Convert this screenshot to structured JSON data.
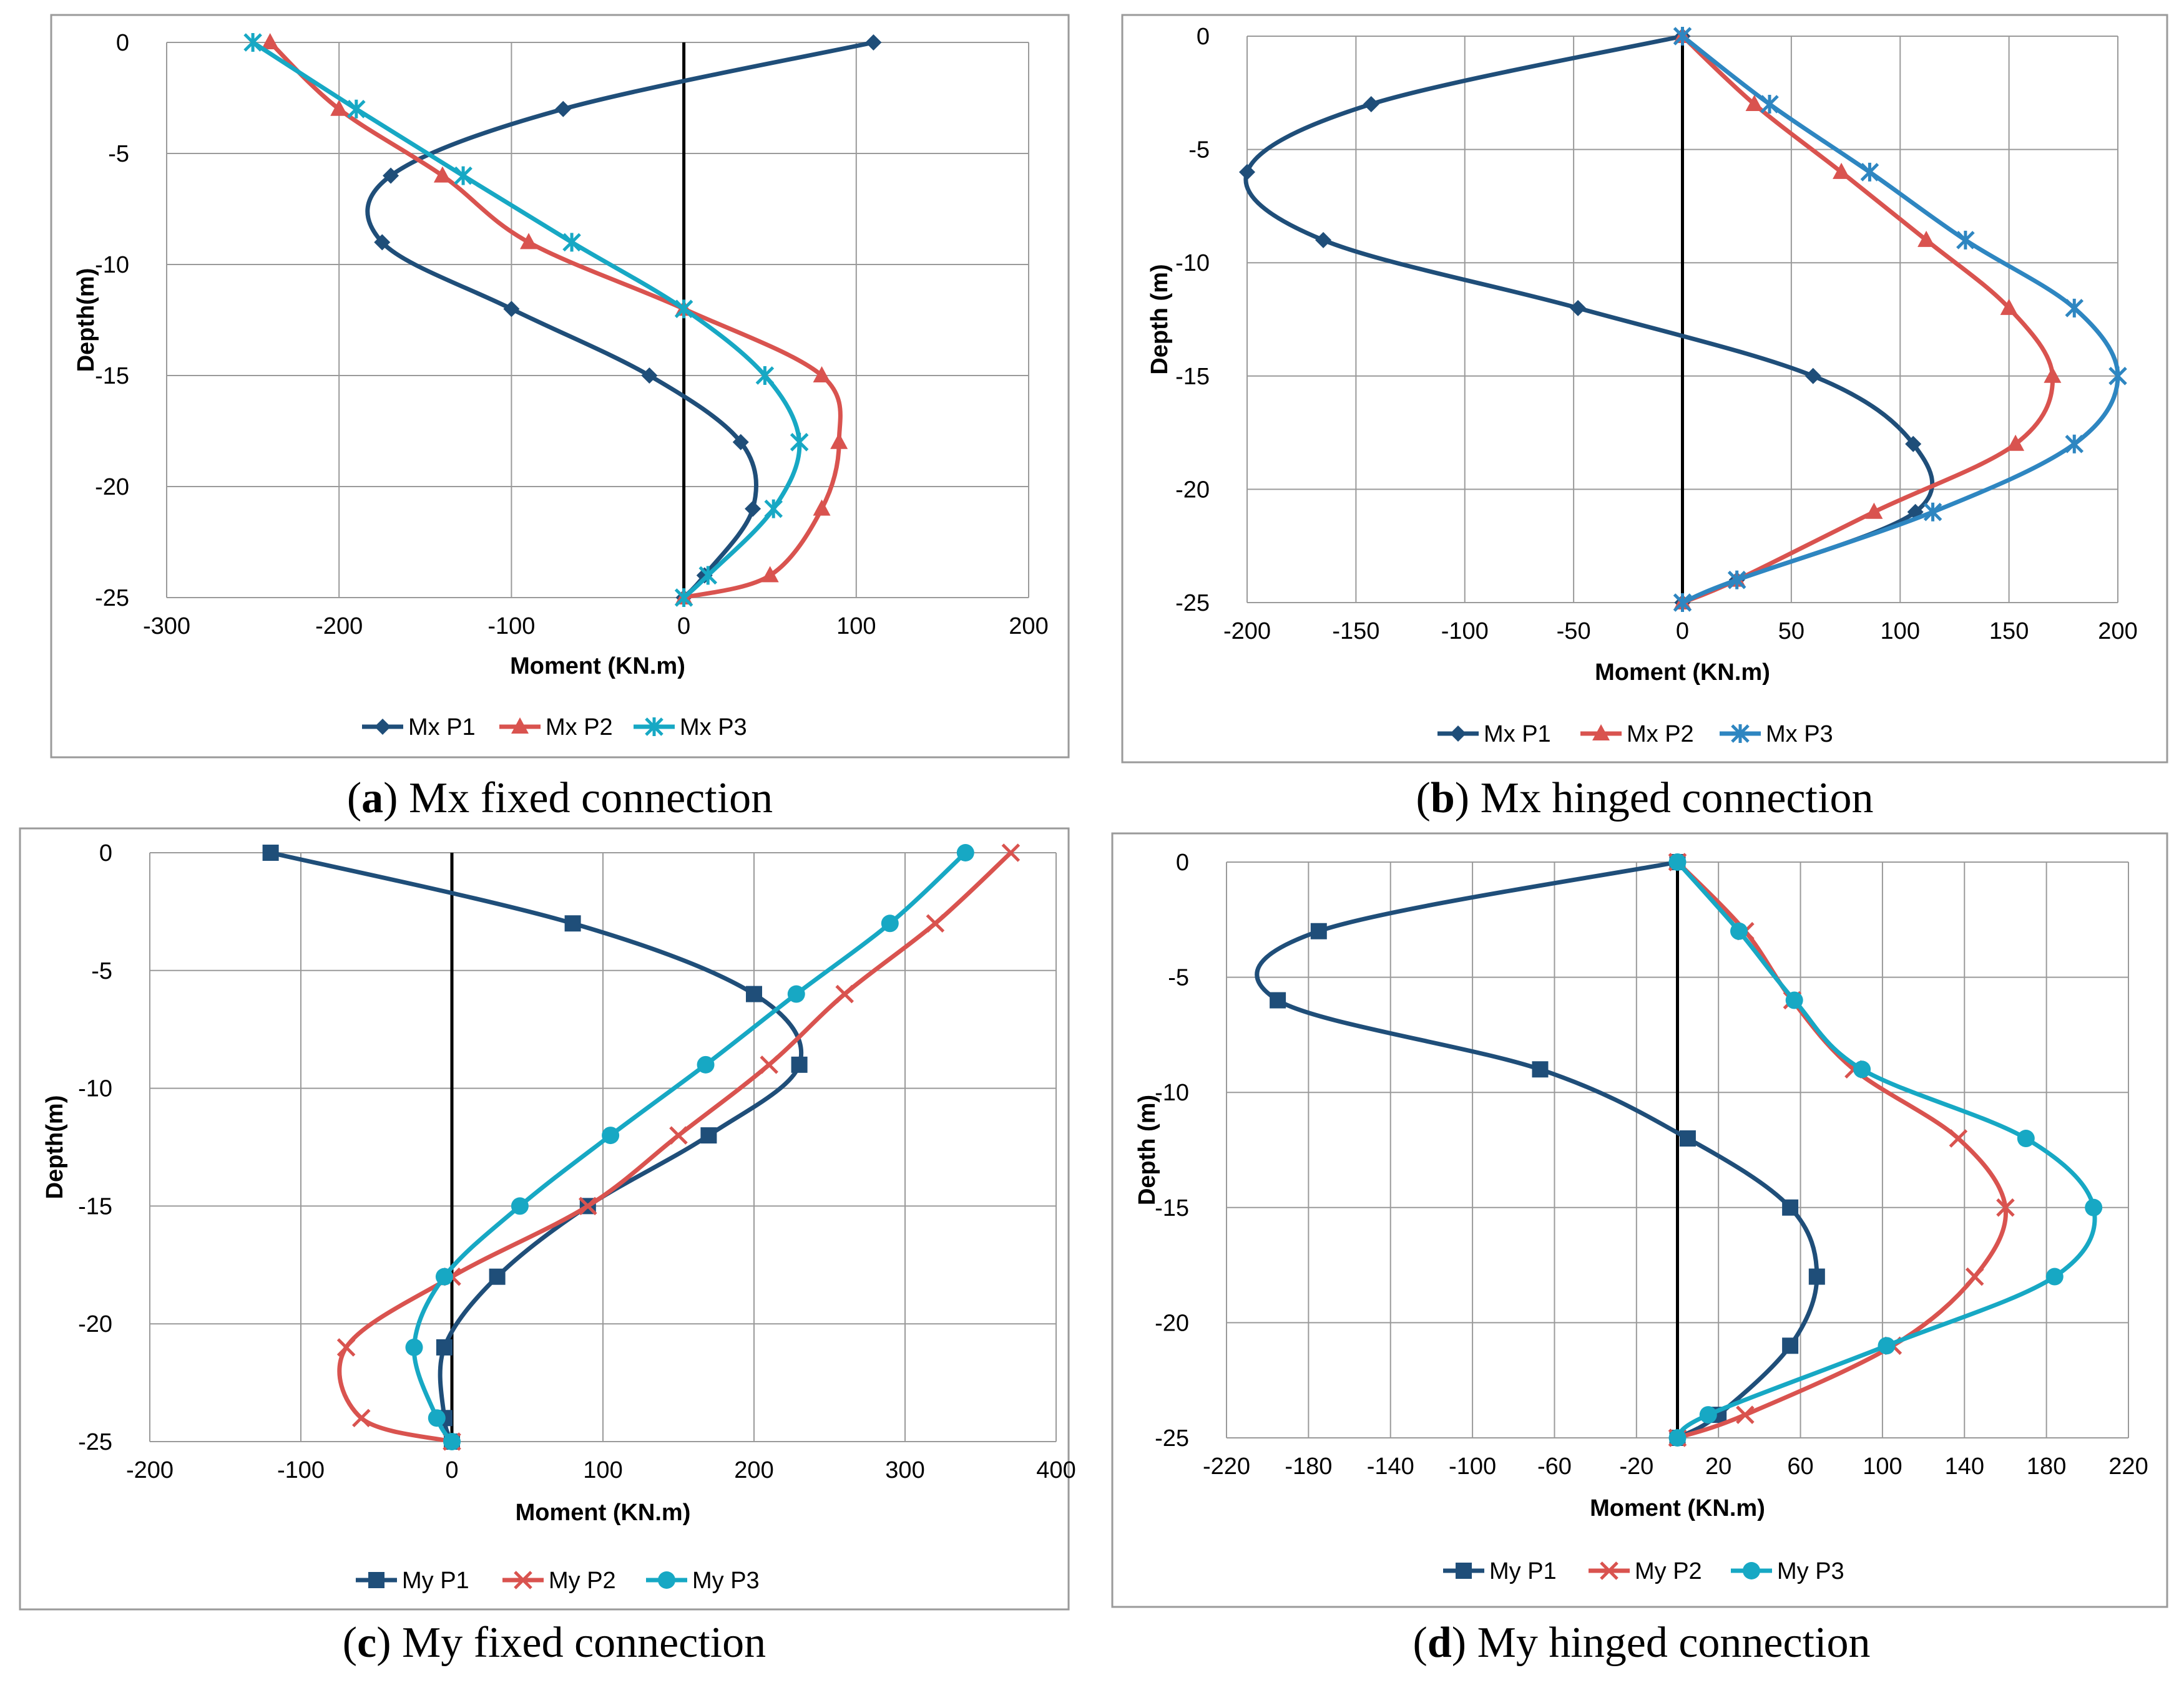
{
  "colors": {
    "P1": "#1f4e79",
    "P2": "#d9534f",
    "P3": "#17a8c4",
    "P3b": "#2e86c1",
    "grid": "#9a9a9a",
    "frame": "#9a9a9a"
  },
  "chart_data": [
    {
      "type": "line",
      "panel": "a",
      "caption_letter": "a",
      "caption_text": "Mx fixed connection",
      "xlabel": "Moment (KN.m)",
      "ylabel": "Depth(m)",
      "xlim": [
        -300,
        200
      ],
      "xticks": [
        -300,
        -200,
        -100,
        0,
        100,
        200
      ],
      "xtick_labels": [
        "-300",
        "-200",
        "-100",
        "0",
        "100",
        "200"
      ],
      "ylim": [
        -25,
        0
      ],
      "yticks": [
        0,
        -5,
        -10,
        -15,
        -20,
        -25
      ],
      "ytick_labels": [
        "0",
        "-5",
        "-10",
        "-15",
        "-20",
        "-25"
      ],
      "series": [
        {
          "name": "Mx P1",
          "marker": "diamond",
          "color_key": "P1",
          "x": [
            110,
            -70,
            -170,
            -175,
            -100,
            -20,
            33,
            40,
            12,
            0
          ],
          "y": [
            0,
            -3,
            -6,
            -9,
            -12,
            -15,
            -18,
            -21,
            -24,
            -25
          ]
        },
        {
          "name": "Mx P2",
          "marker": "triangle",
          "color_key": "P2",
          "x": [
            -240,
            -200,
            -140,
            -90,
            0,
            80,
            90,
            80,
            50,
            0
          ],
          "y": [
            0,
            -3,
            -6,
            -9,
            -12,
            -15,
            -18,
            -21,
            -24,
            -25
          ]
        },
        {
          "name": "Mx P3",
          "marker": "star",
          "color_key": "P3",
          "x": [
            -250,
            -190,
            -128,
            -65,
            0,
            47,
            67,
            52,
            14,
            0
          ],
          "y": [
            0,
            -3,
            -6,
            -9,
            -12,
            -15,
            -18,
            -21,
            -24,
            -25
          ]
        }
      ]
    },
    {
      "type": "line",
      "panel": "b",
      "caption_letter": "b",
      "caption_text": "Mx hinged connection",
      "xlabel": "Moment (KN.m)",
      "ylabel": "Depth (m)",
      "xlim": [
        -200,
        200
      ],
      "xticks": [
        -200,
        -150,
        -100,
        -50,
        0,
        50,
        100,
        150,
        200
      ],
      "xtick_labels": [
        "-200",
        "-150",
        "-100",
        "-50",
        "0",
        "50",
        "100",
        "150",
        "200"
      ],
      "ylim": [
        -25,
        0
      ],
      "yticks": [
        0,
        -5,
        -10,
        -15,
        -20,
        -25
      ],
      "ytick_labels": [
        "0",
        "-5",
        "-10",
        "-15",
        "-20",
        "-25"
      ],
      "series": [
        {
          "name": "Mx P1",
          "marker": "diamond",
          "color_key": "P1",
          "x": [
            0,
            -143,
            -200,
            -165,
            -48,
            60,
            106,
            107,
            25,
            0
          ],
          "y": [
            0,
            -3,
            -6,
            -9,
            -12,
            -15,
            -18,
            -21,
            -24,
            -25
          ]
        },
        {
          "name": "Mx P2",
          "marker": "triangle",
          "color_key": "P2",
          "x": [
            0,
            33,
            73,
            112,
            150,
            170,
            153,
            88,
            25,
            0
          ],
          "y": [
            0,
            -3,
            -6,
            -9,
            -12,
            -15,
            -18,
            -21,
            -24,
            -25
          ]
        },
        {
          "name": "Mx P3",
          "marker": "star",
          "color_key": "P3b",
          "x": [
            0,
            40,
            86,
            130,
            180,
            200,
            180,
            115,
            25,
            0
          ],
          "y": [
            0,
            -3,
            -6,
            -9,
            -12,
            -15,
            -18,
            -21,
            -24,
            -25
          ]
        }
      ]
    },
    {
      "type": "line",
      "panel": "c",
      "caption_letter": "c",
      "caption_text": "My fixed connection",
      "xlabel": "Moment (KN.m)",
      "ylabel": "Depth(m)",
      "xlim": [
        -200,
        400
      ],
      "xticks": [
        -200,
        -100,
        0,
        100,
        200,
        300,
        400
      ],
      "xtick_labels": [
        "-200",
        "-100",
        "0",
        "100",
        "200",
        "300",
        "400"
      ],
      "ylim": [
        -25,
        0
      ],
      "yticks": [
        0,
        -5,
        -10,
        -15,
        -20,
        -25
      ],
      "ytick_labels": [
        "0",
        "-5",
        "-10",
        "-15",
        "-20",
        "-25"
      ],
      "series": [
        {
          "name": "My P1",
          "marker": "square",
          "color_key": "P1",
          "x": [
            -120,
            80,
            200,
            230,
            170,
            90,
            30,
            -5,
            -5,
            0
          ],
          "y": [
            0,
            -3,
            -6,
            -9,
            -12,
            -15,
            -18,
            -21,
            -24,
            -25
          ]
        },
        {
          "name": "My P2",
          "marker": "cross",
          "color_key": "P2",
          "x": [
            370,
            320,
            260,
            210,
            150,
            90,
            0,
            -70,
            -60,
            0
          ],
          "y": [
            0,
            -3,
            -6,
            -9,
            -12,
            -15,
            -18,
            -21,
            -24,
            -25
          ]
        },
        {
          "name": "My P3",
          "marker": "circle",
          "color_key": "P3",
          "x": [
            340,
            290,
            228,
            168,
            105,
            45,
            -5,
            -25,
            -10,
            0
          ],
          "y": [
            0,
            -3,
            -6,
            -9,
            -12,
            -15,
            -18,
            -21,
            -24,
            -25
          ]
        }
      ]
    },
    {
      "type": "line",
      "panel": "d",
      "caption_letter": "d",
      "caption_text": "My hinged connection",
      "xlabel": "Moment (KN.m)",
      "ylabel": "Depth (m)",
      "xlim": [
        -220,
        220
      ],
      "xticks": [
        -220,
        -180,
        -140,
        -100,
        -60,
        -20,
        20,
        60,
        100,
        140,
        180,
        220
      ],
      "xtick_labels": [
        "-220",
        "-180",
        "-140",
        "-100",
        "-60",
        "-20",
        "20",
        "60",
        "100",
        "140",
        "180",
        "220"
      ],
      "ylim": [
        -25,
        0
      ],
      "yticks": [
        0,
        -5,
        -10,
        -15,
        -20,
        -25
      ],
      "ytick_labels": [
        "0",
        "-5",
        "-10",
        "-15",
        "-20",
        "-25"
      ],
      "series": [
        {
          "name": "My P1",
          "marker": "square",
          "color_key": "P1",
          "x": [
            0,
            -175,
            -195,
            -67,
            5,
            55,
            68,
            55,
            20,
            0
          ],
          "y": [
            0,
            -3,
            -6,
            -9,
            -12,
            -15,
            -18,
            -21,
            -24,
            -25
          ]
        },
        {
          "name": "My P2",
          "marker": "cross",
          "color_key": "P2",
          "x": [
            0,
            33,
            56,
            86,
            137,
            160,
            145,
            105,
            33,
            0
          ],
          "y": [
            0,
            -3,
            -6,
            -9,
            -12,
            -15,
            -18,
            -21,
            -24,
            -25
          ]
        },
        {
          "name": "My P3",
          "marker": "circle",
          "color_key": "P3",
          "x": [
            0,
            30,
            57,
            90,
            170,
            203,
            184,
            102,
            15,
            0
          ],
          "y": [
            0,
            -3,
            -6,
            -9,
            -12,
            -15,
            -18,
            -21,
            -24,
            -25
          ]
        }
      ]
    }
  ]
}
